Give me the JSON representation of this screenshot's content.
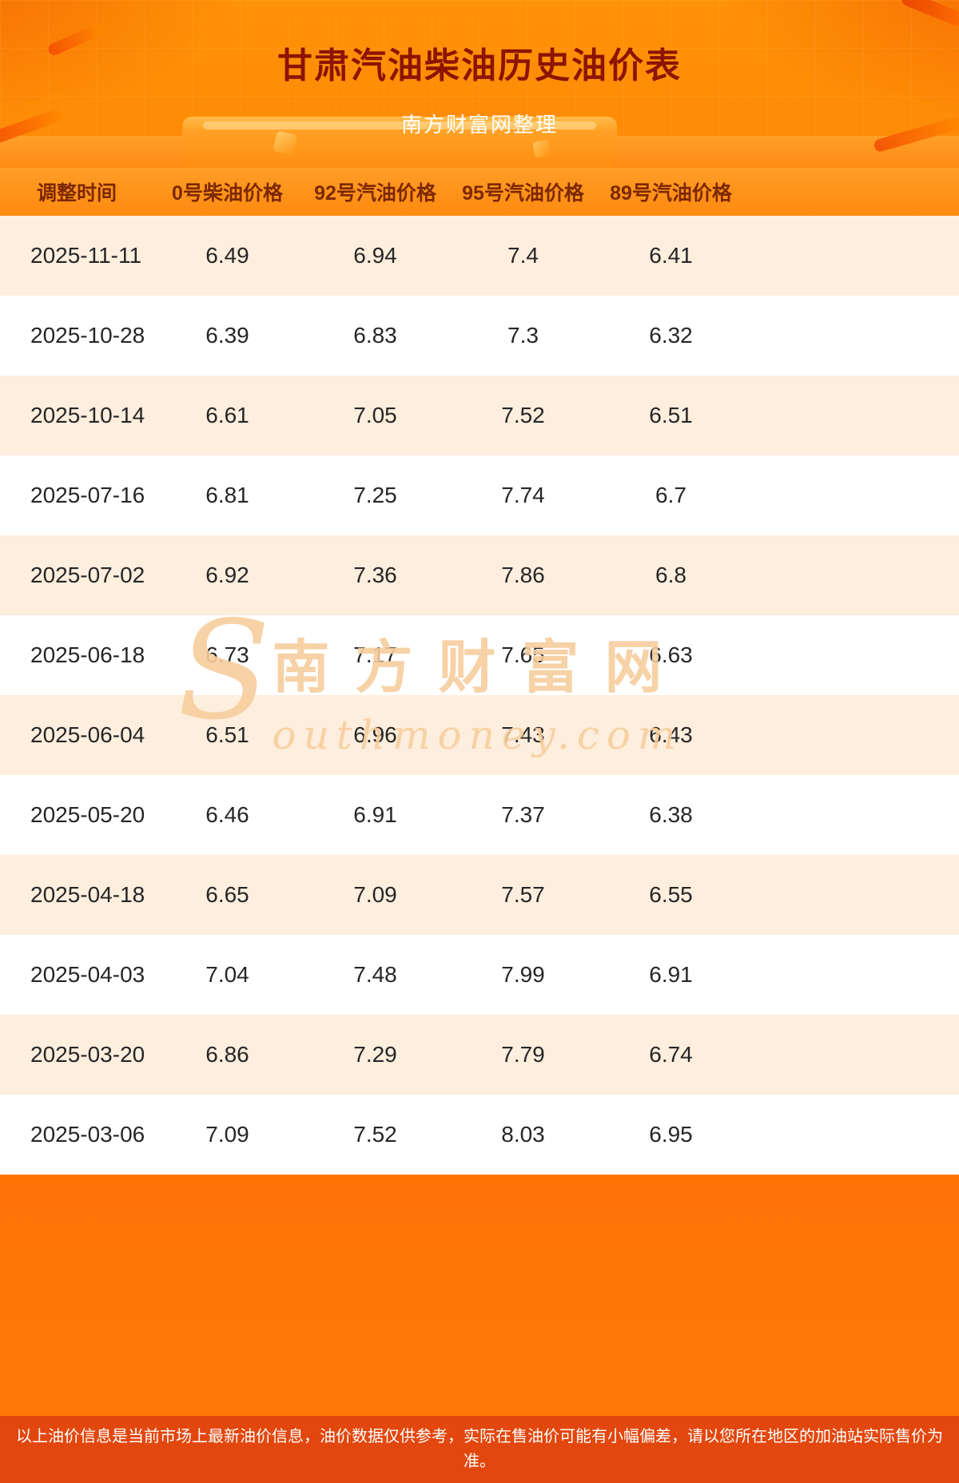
{
  "header": {
    "title": "甘肃汽油柴油历史油价表",
    "subtitle": "南方财富网整理"
  },
  "chart_data": {
    "type": "table",
    "title": "甘肃汽油柴油历史油价表",
    "columns": [
      "调整时间",
      "0号柴油价格",
      "92号汽油价格",
      "95号汽油价格",
      "89号汽油价格"
    ],
    "rows": [
      [
        "2025-11-11",
        "6.49",
        "6.94",
        "7.4",
        "6.41"
      ],
      [
        "2025-10-28",
        "6.39",
        "6.83",
        "7.3",
        "6.32"
      ],
      [
        "2025-10-14",
        "6.61",
        "7.05",
        "7.52",
        "6.51"
      ],
      [
        "2025-07-16",
        "6.81",
        "7.25",
        "7.74",
        "6.7"
      ],
      [
        "2025-07-02",
        "6.92",
        "7.36",
        "7.86",
        "6.8"
      ],
      [
        "2025-06-18",
        "6.73",
        "7.17",
        "7.65",
        "6.63"
      ],
      [
        "2025-06-04",
        "6.51",
        "6.96",
        "7.43",
        "6.43"
      ],
      [
        "2025-05-20",
        "6.46",
        "6.91",
        "7.37",
        "6.38"
      ],
      [
        "2025-04-18",
        "6.65",
        "7.09",
        "7.57",
        "6.55"
      ],
      [
        "2025-04-03",
        "7.04",
        "7.48",
        "7.99",
        "6.91"
      ],
      [
        "2025-03-20",
        "6.86",
        "7.29",
        "7.79",
        "6.74"
      ],
      [
        "2025-03-06",
        "7.09",
        "7.52",
        "8.03",
        "6.95"
      ]
    ]
  },
  "watermark": {
    "s": "S",
    "line1": "南方财富网",
    "line2": "outhmoney.com"
  },
  "footer": {
    "note": "以上油价信息是当前市场上最新油价信息，油价数据仅供参考，实际在售油价可能有小幅偏差，请以您所在地区的加油站实际售价为准。"
  },
  "colors": {
    "background_orange": "#ff7a06",
    "title_red": "#8c1400",
    "header_row_orange": "#ff8f1a",
    "header_text_brown": "#7c2800",
    "row_peach": "#fdeede",
    "row_white": "#ffffff",
    "footer_bar_red": "#e2470e",
    "watermark_tan": "#f6cd9c"
  }
}
